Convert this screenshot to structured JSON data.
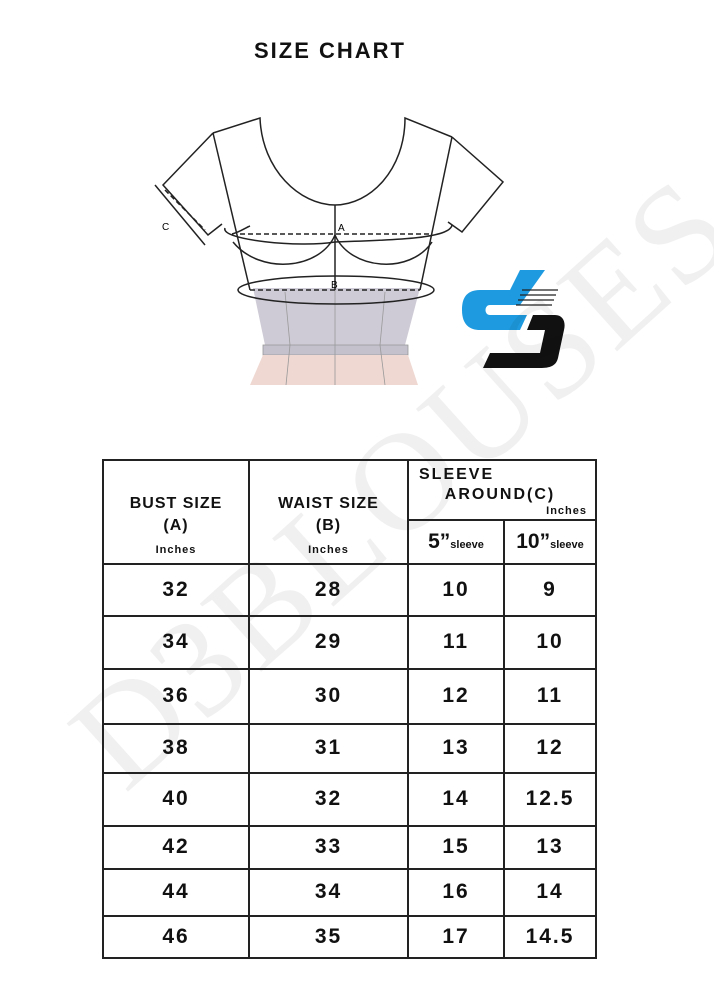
{
  "title": "SIZE CHART",
  "diagram": {
    "label_a": "A",
    "label_b": "B",
    "label_c": "C"
  },
  "watermark": "D3BLOUSES",
  "colors": {
    "logo_blue": "#1e9be0",
    "logo_black": "#111111",
    "waist_fill": "#cfcbd6",
    "skirt_fill": "#efd8d2"
  },
  "table": {
    "headers": {
      "bust": "BUST SIZE",
      "bust_sub": "(A)",
      "bust_unit": "Inches",
      "waist": "WAIST SIZE",
      "waist_sub": "(B)",
      "waist_unit": "Inches",
      "sleeve_line1": "SLEEVE",
      "sleeve_line2": "AROUND",
      "sleeve_sub": "(C)",
      "sleeve_unit": "Inches",
      "col5": "5”",
      "col10": "10”",
      "sleeve_word": "sleeve"
    },
    "rows": [
      [
        "32",
        "28",
        "10",
        "9"
      ],
      [
        "34",
        "29",
        "11",
        "10"
      ],
      [
        "36",
        "30",
        "12",
        "11"
      ],
      [
        "38",
        "31",
        "13",
        "12"
      ],
      [
        "40",
        "32",
        "14",
        "12.5"
      ],
      [
        "42",
        "33",
        "15",
        "13"
      ],
      [
        "44",
        "34",
        "16",
        "14"
      ],
      [
        "46",
        "35",
        "17",
        "14.5"
      ]
    ]
  }
}
